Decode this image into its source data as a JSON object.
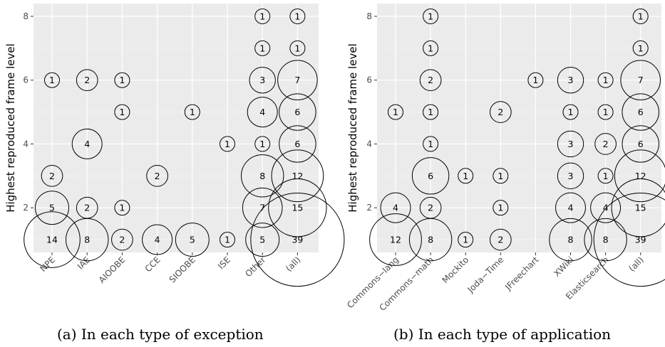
{
  "chart_data": [
    {
      "type": "scatter",
      "caption": "(a) In each type of exception",
      "ylabel": "Highest reproduced frame level",
      "xlabel": "",
      "categories": [
        "NPE",
        "IAE",
        "AIOOBE",
        "CCE",
        "SIOOBE",
        "ISE",
        "Other",
        "(all)"
      ],
      "yticks": [
        2,
        4,
        6,
        8
      ],
      "ylim": [
        0.6,
        8.4
      ],
      "grid": true,
      "legend": "none",
      "points": [
        {
          "x": "NPE",
          "y": 6,
          "count": 1
        },
        {
          "x": "NPE",
          "y": 3,
          "count": 2
        },
        {
          "x": "NPE",
          "y": 2,
          "count": 5
        },
        {
          "x": "NPE",
          "y": 1,
          "count": 14
        },
        {
          "x": "IAE",
          "y": 6,
          "count": 2
        },
        {
          "x": "IAE",
          "y": 4,
          "count": 4
        },
        {
          "x": "IAE",
          "y": 2,
          "count": 2
        },
        {
          "x": "IAE",
          "y": 1,
          "count": 8
        },
        {
          "x": "AIOOBE",
          "y": 6,
          "count": 1
        },
        {
          "x": "AIOOBE",
          "y": 5,
          "count": 1
        },
        {
          "x": "AIOOBE",
          "y": 2,
          "count": 1
        },
        {
          "x": "AIOOBE",
          "y": 1,
          "count": 2
        },
        {
          "x": "CCE",
          "y": 3,
          "count": 2
        },
        {
          "x": "CCE",
          "y": 1,
          "count": 4
        },
        {
          "x": "SIOOBE",
          "y": 5,
          "count": 1
        },
        {
          "x": "SIOOBE",
          "y": 1,
          "count": 5
        },
        {
          "x": "ISE",
          "y": 4,
          "count": 1
        },
        {
          "x": "ISE",
          "y": 1,
          "count": 1
        },
        {
          "x": "Other",
          "y": 8,
          "count": 1
        },
        {
          "x": "Other",
          "y": 7,
          "count": 1
        },
        {
          "x": "Other",
          "y": 6,
          "count": 3
        },
        {
          "x": "Other",
          "y": 5,
          "count": 4
        },
        {
          "x": "Other",
          "y": 4,
          "count": 1
        },
        {
          "x": "Other",
          "y": 3,
          "count": 8
        },
        {
          "x": "Other",
          "y": 2,
          "count": 7
        },
        {
          "x": "Other",
          "y": 1,
          "count": 5
        },
        {
          "x": "(all)",
          "y": 8,
          "count": 1
        },
        {
          "x": "(all)",
          "y": 7,
          "count": 1
        },
        {
          "x": "(all)",
          "y": 6,
          "count": 7
        },
        {
          "x": "(all)",
          "y": 5,
          "count": 6
        },
        {
          "x": "(all)",
          "y": 4,
          "count": 6
        },
        {
          "x": "(all)",
          "y": 3,
          "count": 12
        },
        {
          "x": "(all)",
          "y": 2,
          "count": 15
        },
        {
          "x": "(all)",
          "y": 1,
          "count": 39
        }
      ]
    },
    {
      "type": "scatter",
      "caption": "(b) In each type of application",
      "ylabel": "Highest reproduced frame level",
      "xlabel": "",
      "categories": [
        "Commons−lang",
        "Commons−math",
        "Mockito",
        "Joda−Time",
        "JFreechart",
        "XWiki",
        "Elasticsearch",
        "(all)"
      ],
      "yticks": [
        2,
        4,
        6,
        8
      ],
      "ylim": [
        0.6,
        8.4
      ],
      "grid": true,
      "legend": "none",
      "points": [
        {
          "x": "Commons−lang",
          "y": 5,
          "count": 1
        },
        {
          "x": "Commons−lang",
          "y": 2,
          "count": 4
        },
        {
          "x": "Commons−lang",
          "y": 1,
          "count": 12
        },
        {
          "x": "Commons−math",
          "y": 8,
          "count": 1
        },
        {
          "x": "Commons−math",
          "y": 7,
          "count": 1
        },
        {
          "x": "Commons−math",
          "y": 6,
          "count": 2
        },
        {
          "x": "Commons−math",
          "y": 5,
          "count": 1
        },
        {
          "x": "Commons−math",
          "y": 4,
          "count": 1
        },
        {
          "x": "Commons−math",
          "y": 3,
          "count": 6
        },
        {
          "x": "Commons−math",
          "y": 2,
          "count": 2
        },
        {
          "x": "Commons−math",
          "y": 1,
          "count": 8
        },
        {
          "x": "Mockito",
          "y": 3,
          "count": 1
        },
        {
          "x": "Mockito",
          "y": 1,
          "count": 1
        },
        {
          "x": "Joda−Time",
          "y": 5,
          "count": 2
        },
        {
          "x": "Joda−Time",
          "y": 3,
          "count": 1
        },
        {
          "x": "Joda−Time",
          "y": 2,
          "count": 1
        },
        {
          "x": "Joda−Time",
          "y": 1,
          "count": 2
        },
        {
          "x": "JFreechart",
          "y": 6,
          "count": 1
        },
        {
          "x": "XWiki",
          "y": 6,
          "count": 3
        },
        {
          "x": "XWiki",
          "y": 5,
          "count": 1
        },
        {
          "x": "XWiki",
          "y": 4,
          "count": 3
        },
        {
          "x": "XWiki",
          "y": 3,
          "count": 3
        },
        {
          "x": "XWiki",
          "y": 2,
          "count": 4
        },
        {
          "x": "XWiki",
          "y": 1,
          "count": 8
        },
        {
          "x": "Elasticsearch",
          "y": 6,
          "count": 1
        },
        {
          "x": "Elasticsearch",
          "y": 5,
          "count": 1
        },
        {
          "x": "Elasticsearch",
          "y": 4,
          "count": 2
        },
        {
          "x": "Elasticsearch",
          "y": 3,
          "count": 1
        },
        {
          "x": "Elasticsearch",
          "y": 2,
          "count": 4
        },
        {
          "x": "Elasticsearch",
          "y": 1,
          "count": 8
        },
        {
          "x": "(all)",
          "y": 8,
          "count": 1
        },
        {
          "x": "(all)",
          "y": 7,
          "count": 1
        },
        {
          "x": "(all)",
          "y": 6,
          "count": 7
        },
        {
          "x": "(all)",
          "y": 5,
          "count": 6
        },
        {
          "x": "(all)",
          "y": 4,
          "count": 6
        },
        {
          "x": "(all)",
          "y": 3,
          "count": 12
        },
        {
          "x": "(all)",
          "y": 2,
          "count": 15
        },
        {
          "x": "(all)",
          "y": 1,
          "count": 39
        }
      ]
    }
  ]
}
